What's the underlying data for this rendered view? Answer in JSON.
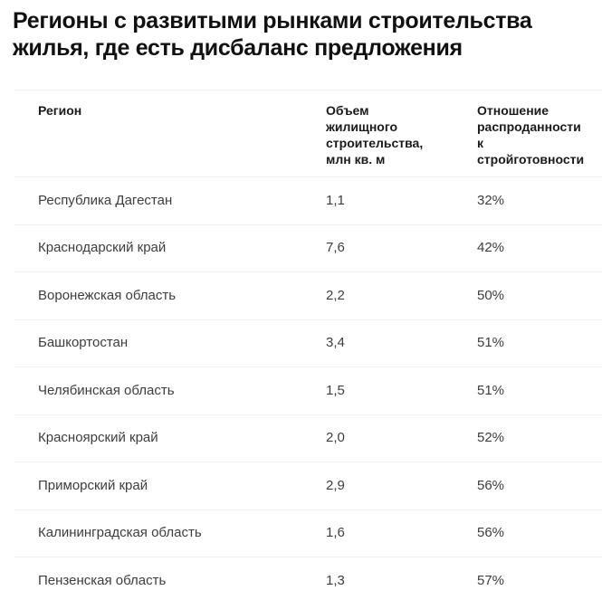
{
  "title": "Регионы с развитыми рынками строительства жилья, где есть дисбаланс предложения",
  "colors": {
    "background": "#ffffff",
    "title_text": "#111111",
    "header_text": "#1a1a1a",
    "body_text": "#3d3d3d",
    "divider": "#f0f0f0"
  },
  "table": {
    "columns": {
      "region": "Регион",
      "volume": "Объем\nжилищного\nстроительства,\nмлн кв. м",
      "ratio": "Отношение\nраспроданности\nк\nстройготовности"
    },
    "rows": [
      {
        "region": "Республика Дагестан",
        "volume": "1,1",
        "ratio": "32%"
      },
      {
        "region": "Краснодарский край",
        "volume": "7,6",
        "ratio": "42%"
      },
      {
        "region": "Воронежская область",
        "volume": "2,2",
        "ratio": "50%"
      },
      {
        "region": "Башкортостан",
        "volume": "3,4",
        "ratio": "51%"
      },
      {
        "region": "Челябинская область",
        "volume": "1,5",
        "ratio": "51%"
      },
      {
        "region": "Красноярский край",
        "volume": "2,0",
        "ratio": "52%"
      },
      {
        "region": "Приморский край",
        "volume": "2,9",
        "ratio": "56%"
      },
      {
        "region": "Калининградская область",
        "volume": "1,6",
        "ratio": "56%"
      },
      {
        "region": "Пензенская область",
        "volume": "1,3",
        "ratio": "57%"
      }
    ]
  }
}
